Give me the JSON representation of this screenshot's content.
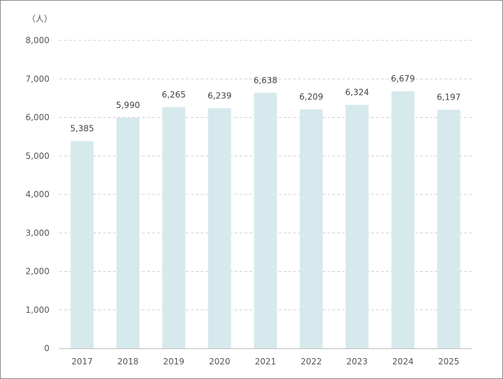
{
  "chart_data": {
    "type": "bar",
    "unit_label": "（人）",
    "categories": [
      "2017",
      "2018",
      "2019",
      "2020",
      "2021",
      "2022",
      "2023",
      "2024",
      "2025"
    ],
    "values": [
      5385,
      5990,
      6265,
      6239,
      6638,
      6209,
      6324,
      6679,
      6197
    ],
    "data_labels": [
      "5,385",
      "5,990",
      "6,265",
      "6,239",
      "6,638",
      "6,209",
      "6,324",
      "6,679",
      "6,197"
    ],
    "ylim": [
      0,
      8000
    ],
    "yticks": [
      0,
      1000,
      2000,
      3000,
      4000,
      5000,
      6000,
      7000,
      8000
    ],
    "ytick_labels": [
      "0",
      "1,000",
      "2,000",
      "3,000",
      "4,000",
      "5,000",
      "6,000",
      "7,000",
      "8,000"
    ],
    "grid": true,
    "bar_color": "#d6e9ec",
    "grid_color": "#d0d0d0",
    "axis_color": "#bdbdbd"
  }
}
